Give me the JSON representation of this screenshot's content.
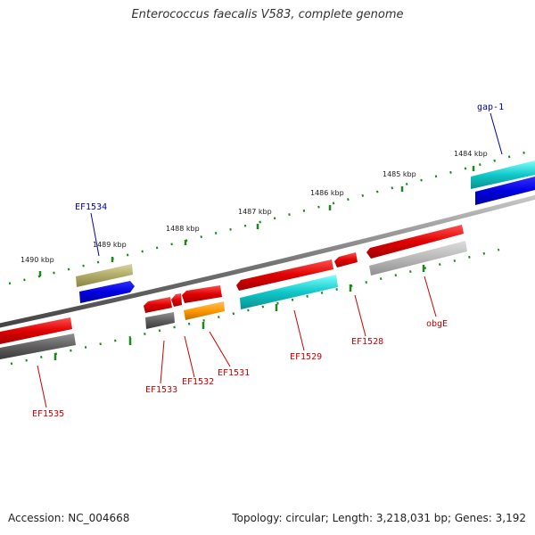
{
  "title": "Enterococcus faecalis V583, complete genome",
  "footer": {
    "accession": "Accession: NC_004668",
    "summary": "Topology: circular; Length: 3,218,031 bp; Genes: 3,192"
  },
  "scale_labels": [
    "1484 kbp",
    "1485 kbp",
    "1486 kbp",
    "1487 kbp",
    "1488 kbp",
    "1489 kbp",
    "1490 kbp"
  ],
  "gene_labels": {
    "gap1": "gap-1",
    "ef1534": "EF1534",
    "ef1535": "EF1535",
    "ef1533": "EF1533",
    "ef1532": "EF1532",
    "ef1531": "EF1531",
    "ef1529": "EF1529",
    "ef1528": "EF1528",
    "obge": "obgE"
  },
  "colors": {
    "label_blue": "#0000aa",
    "label_red": "#cc0000",
    "tick_green": "#1a8a1a",
    "backbone": "#777777"
  }
}
